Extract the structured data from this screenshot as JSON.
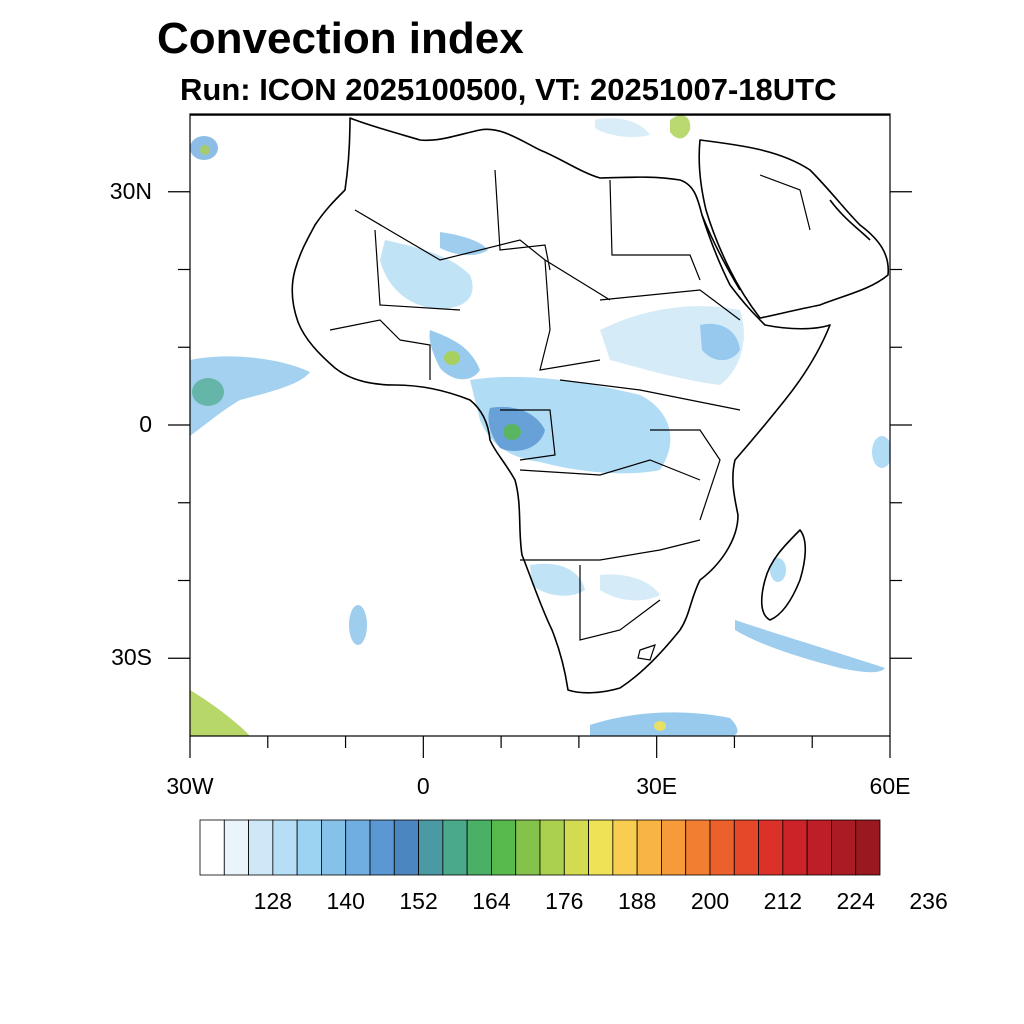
{
  "header": {
    "title": "Convection index",
    "subtitle": "Run: ICON 2025100500,  VT: 20251007-18UTC"
  },
  "map": {
    "lon_range": [
      -30,
      60
    ],
    "lat_range": [
      -40,
      40
    ],
    "lat_labels": [
      {
        "lat": 30,
        "label": "30N"
      },
      {
        "lat": 0,
        "label": "0"
      },
      {
        "lat": -30,
        "label": "30S"
      }
    ],
    "lon_labels": [
      {
        "lon": -30,
        "label": "30W"
      },
      {
        "lon": 0,
        "label": "0"
      },
      {
        "lon": 30,
        "label": "30E"
      },
      {
        "lon": 60,
        "label": "60E"
      }
    ]
  },
  "colorbar": {
    "colors": [
      "#ffffff",
      "#e9f4fb",
      "#cfe8f7",
      "#b6def5",
      "#9dd3f2",
      "#86c1ea",
      "#70ade0",
      "#5b97d2",
      "#4c86c0",
      "#4a99a3",
      "#4aa98a",
      "#49b066",
      "#58b94c",
      "#84c34b",
      "#aad04e",
      "#d3dc50",
      "#f0e256",
      "#f9cd4f",
      "#f8b544",
      "#f69a3a",
      "#f27e31",
      "#ec612b",
      "#e54828",
      "#dc3129",
      "#cc2328",
      "#bd1e27",
      "#ab1b24",
      "#9a1820"
    ],
    "labels": [
      "128",
      "140",
      "152",
      "164",
      "176",
      "188",
      "200",
      "212",
      "224",
      "236"
    ]
  },
  "icons": {
    "map": "africa-outline-map"
  }
}
